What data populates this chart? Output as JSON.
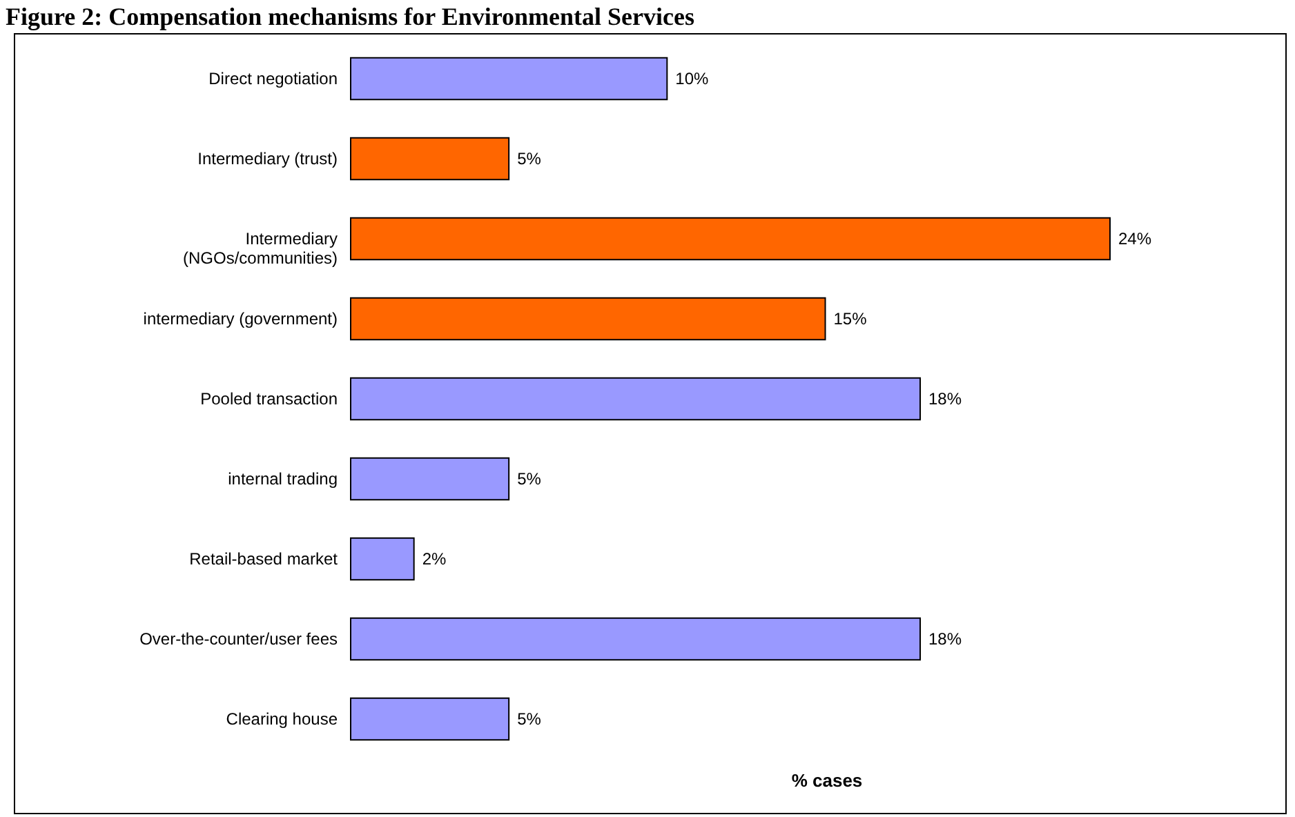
{
  "chart_data": {
    "type": "bar",
    "orientation": "horizontal",
    "title": "Figure 2: Compensation mechanisms for Environmental Services",
    "xlabel": "% cases",
    "categories": [
      "Direct negotiation",
      "Intermediary (trust)",
      "Intermediary (NGOs/communities)",
      "intermediary (government)",
      "Pooled transaction",
      "internal trading",
      "Retail-based market",
      "Over-the-counter/user fees",
      "Clearing house"
    ],
    "values": [
      10,
      5,
      24,
      15,
      18,
      5,
      2,
      18,
      5
    ],
    "colors": [
      "#9999ff",
      "#ff6600",
      "#ff6600",
      "#ff6600",
      "#9999ff",
      "#9999ff",
      "#9999ff",
      "#9999ff",
      "#9999ff"
    ],
    "value_labels": [
      "10%",
      "5%",
      "24%",
      "15%",
      "18%",
      "5%",
      "2%",
      "18%",
      "5%"
    ]
  }
}
